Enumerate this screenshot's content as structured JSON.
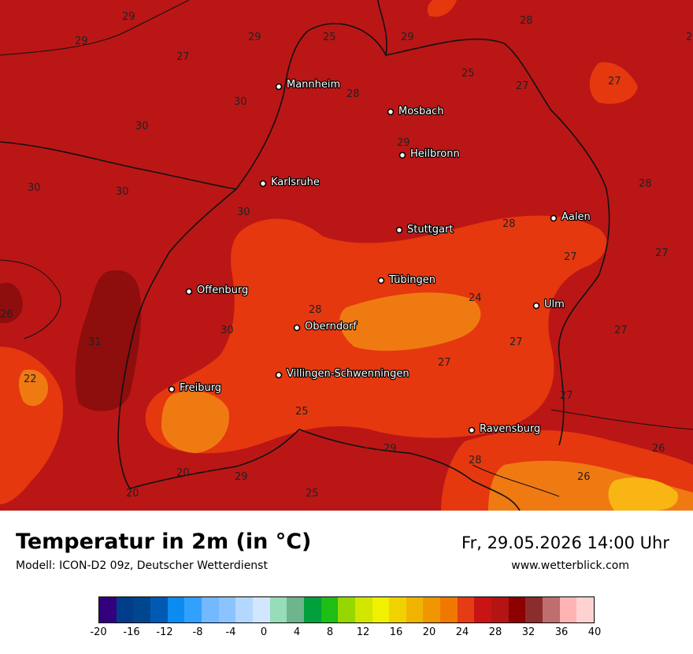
{
  "title": "Temperatur in 2m (in °C)",
  "model": "Modell: ICON-D2 09z, Deutscher Wetterdienst",
  "datetime": "Fr, 29.05.2026 14:00 Uhr",
  "website": "www.wetterblick.com",
  "colors": {
    "base": "#ba1616",
    "hot": "#8e0d0d",
    "warm": "#e5380f",
    "mild": "#f07a12",
    "cool": "#f8b514",
    "border": "#111111"
  },
  "cities": [
    {
      "name": "Mannheim"
    },
    {
      "name": "Mosbach"
    },
    {
      "name": "Heilbronn"
    },
    {
      "name": "Karlsruhe"
    },
    {
      "name": "Stuttgart"
    },
    {
      "name": "Aalen"
    },
    {
      "name": "Tübingen"
    },
    {
      "name": "Offenburg"
    },
    {
      "name": "Ulm"
    },
    {
      "name": "Oberndorf"
    },
    {
      "name": "Villingen-Schwenningen"
    },
    {
      "name": "Freiburg"
    },
    {
      "name": "Ravensburg"
    }
  ],
  "values": [
    "29",
    "29",
    "29",
    "25",
    "29",
    "28",
    "27",
    "30",
    "30",
    "30",
    "30",
    "25",
    "27",
    "28",
    "27",
    "28",
    "29",
    "30",
    "28",
    "28",
    "27",
    "27",
    "26",
    "24",
    "28",
    "30",
    "31",
    "27",
    "22",
    "27",
    "27",
    "27",
    "25",
    "26",
    "29",
    "28",
    "26",
    "28",
    "29",
    "25",
    "20",
    "20",
    "28",
    "28"
  ],
  "legend": {
    "colors": [
      "#32007d",
      "#003c8a",
      "#00468e",
      "#005ab4",
      "#0a8cf0",
      "#32a0ff",
      "#73b9ff",
      "#8cc3ff",
      "#b4d7ff",
      "#d2e6ff",
      "#96dcb9",
      "#6eb48c",
      "#00a03c",
      "#1ebe14",
      "#96d700",
      "#d2e600",
      "#f0f000",
      "#f0d200",
      "#f0b400",
      "#f09600",
      "#f07800",
      "#e63c14",
      "#c81414",
      "#b41414",
      "#8c0000",
      "#8c2d2d",
      "#be6e6e",
      "#ffb4b4",
      "#ffd2d2"
    ],
    "ticks": [
      "-20",
      "-16",
      "-12",
      "-8",
      "-4",
      "0",
      "4",
      "8",
      "12",
      "16",
      "20",
      "24",
      "28",
      "32",
      "36",
      "40"
    ]
  }
}
